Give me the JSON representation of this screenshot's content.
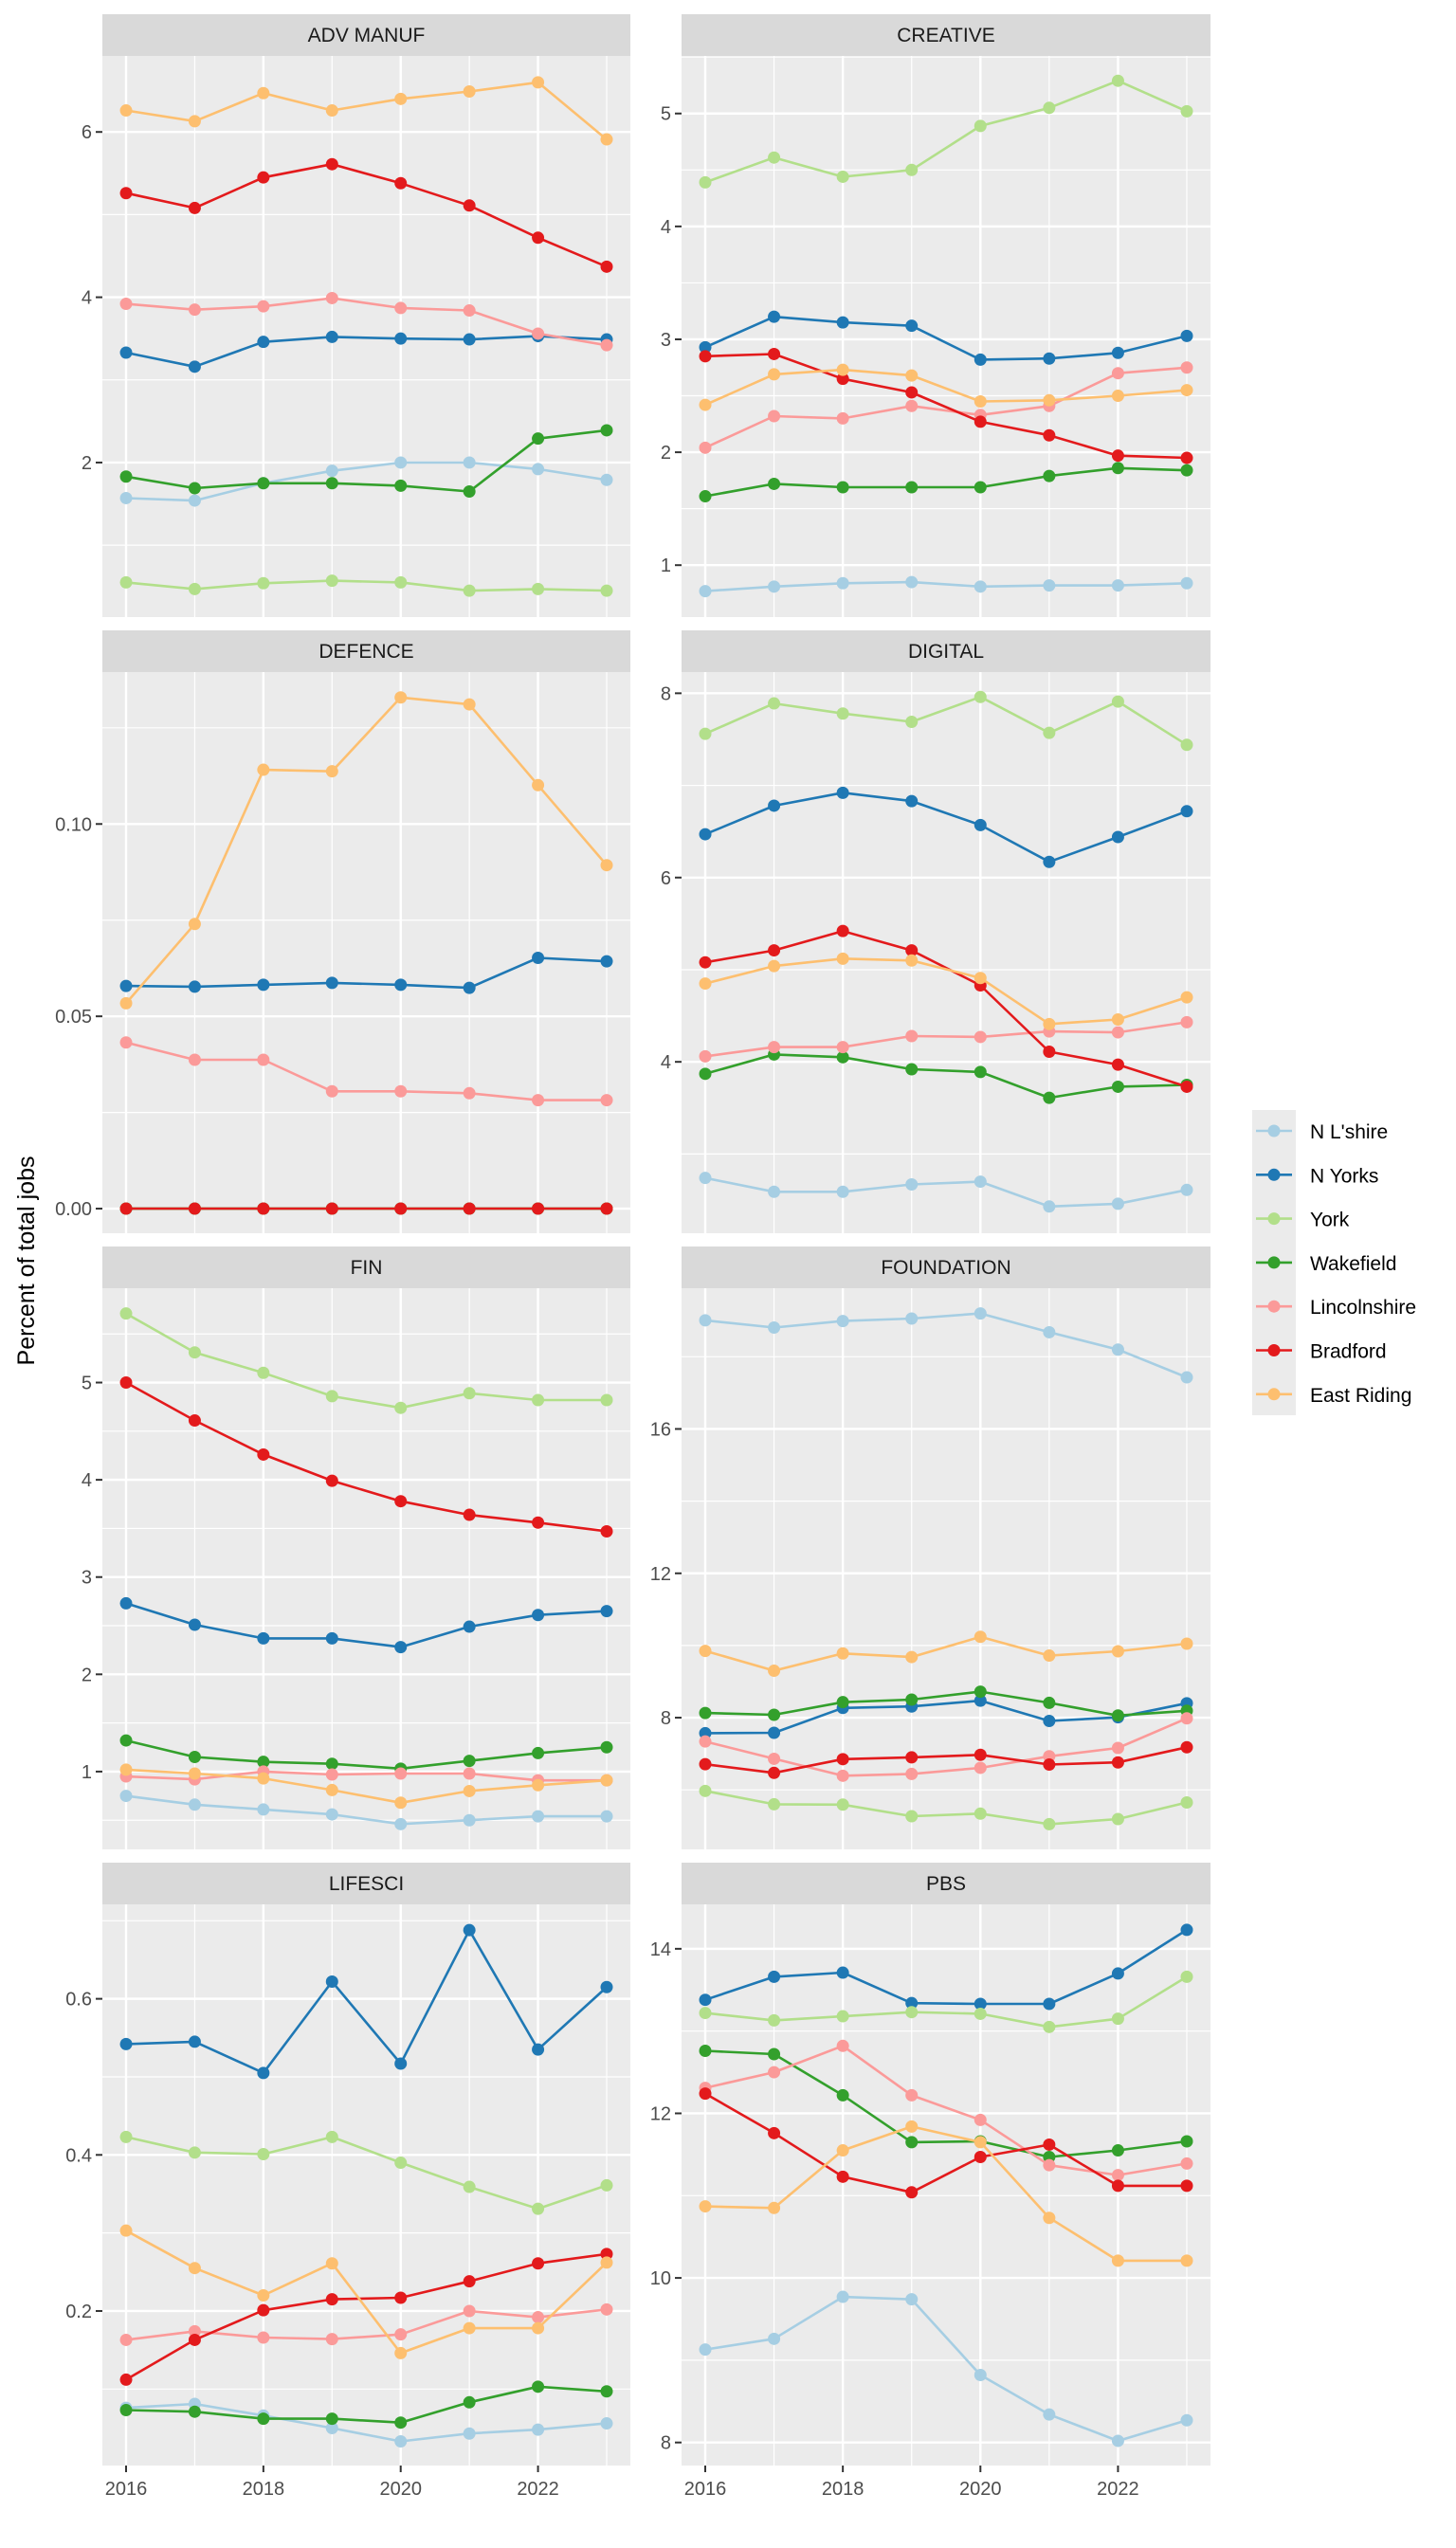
{
  "chart_data": {
    "type": "line",
    "ylabel": "Percent of total jobs",
    "xlabel": "",
    "x": [
      2016,
      2017,
      2018,
      2019,
      2020,
      2021,
      2022,
      2023
    ],
    "x_tick_labels": [
      "2016",
      "2018",
      "2020",
      "2022"
    ],
    "legend": {
      "placement": "right",
      "entries": [
        "N L'shire",
        "N Yorks",
        "York",
        "Wakefield",
        "Lincolnshire",
        "Bradford",
        "East Riding"
      ]
    },
    "series_colors": {
      "N L'shire": "#a6cee3",
      "N Yorks": "#1f78b4",
      "York": "#b2df8a",
      "Wakefield": "#33a02c",
      "Lincolnshire": "#fb9a99",
      "Bradford": "#e31a1c",
      "East Riding": "#fdbf6f"
    },
    "grid": true,
    "facets": [
      {
        "title": "ADV MANUF",
        "ylim": [
          0.13,
          6.92
        ],
        "y_ticks": [
          2,
          4,
          6
        ],
        "y_tick_labels": [
          "2",
          "4",
          "6"
        ],
        "series": [
          {
            "name": "N L'shire",
            "values": [
              1.57,
              1.54,
              1.75,
              1.9,
              2.0,
              2.0,
              1.92,
              1.79
            ]
          },
          {
            "name": "N Yorks",
            "values": [
              3.33,
              3.16,
              3.46,
              3.52,
              3.5,
              3.49,
              3.53,
              3.49
            ]
          },
          {
            "name": "York",
            "values": [
              0.55,
              0.47,
              0.54,
              0.57,
              0.55,
              0.45,
              0.47,
              0.45
            ]
          },
          {
            "name": "Wakefield",
            "values": [
              1.83,
              1.69,
              1.75,
              1.75,
              1.72,
              1.65,
              2.29,
              2.39
            ]
          },
          {
            "name": "Lincolnshire",
            "values": [
              3.92,
              3.85,
              3.89,
              3.99,
              3.87,
              3.84,
              3.56,
              3.42
            ]
          },
          {
            "name": "Bradford",
            "values": [
              5.26,
              5.08,
              5.45,
              5.61,
              5.38,
              5.11,
              4.72,
              4.37
            ]
          },
          {
            "name": "East Riding",
            "values": [
              6.26,
              6.13,
              6.47,
              6.26,
              6.4,
              6.49,
              6.6,
              5.91
            ]
          }
        ]
      },
      {
        "title": "CREATIVE",
        "ylim": [
          0.54,
          5.51
        ],
        "y_ticks": [
          1,
          2,
          3,
          4,
          5
        ],
        "y_tick_labels": [
          "1",
          "2",
          "3",
          "4",
          "5"
        ],
        "series": [
          {
            "name": "N L'shire",
            "values": [
              0.77,
              0.81,
              0.84,
              0.85,
              0.81,
              0.82,
              0.82,
              0.84
            ]
          },
          {
            "name": "N Yorks",
            "values": [
              2.93,
              3.2,
              3.15,
              3.12,
              2.82,
              2.83,
              2.88,
              3.03
            ]
          },
          {
            "name": "York",
            "values": [
              4.39,
              4.61,
              4.44,
              4.5,
              4.89,
              5.05,
              5.29,
              5.02
            ]
          },
          {
            "name": "Wakefield",
            "values": [
              1.61,
              1.72,
              1.69,
              1.69,
              1.69,
              1.79,
              1.86,
              1.84
            ]
          },
          {
            "name": "Lincolnshire",
            "values": [
              2.04,
              2.32,
              2.3,
              2.41,
              2.33,
              2.41,
              2.7,
              2.75
            ]
          },
          {
            "name": "Bradford",
            "values": [
              2.85,
              2.87,
              2.65,
              2.53,
              2.27,
              2.15,
              1.97,
              1.95
            ]
          },
          {
            "name": "East Riding",
            "values": [
              2.42,
              2.69,
              2.73,
              2.68,
              2.45,
              2.46,
              2.5,
              2.55
            ]
          }
        ]
      },
      {
        "title": "DEFENCE",
        "ylim": [
          -0.0064,
          0.1395
        ],
        "y_ticks": [
          0.0,
          0.05,
          0.1
        ],
        "y_tick_labels": [
          "0.00",
          "0.05",
          "0.10"
        ],
        "series": [
          {
            "name": "N L'shire",
            "values": [
              0,
              0,
              0,
              0,
              0,
              0,
              0,
              0
            ]
          },
          {
            "name": "N Yorks",
            "values": [
              0.0579,
              0.0577,
              0.0582,
              0.0587,
              0.0582,
              0.0574,
              0.0652,
              0.0643
            ]
          },
          {
            "name": "York",
            "values": [
              0,
              0,
              0,
              0,
              0,
              0,
              0,
              0
            ]
          },
          {
            "name": "Wakefield",
            "values": [
              0,
              0,
              0,
              0,
              0,
              0,
              0,
              0
            ]
          },
          {
            "name": "Lincolnshire",
            "values": [
              0.0432,
              0.0387,
              0.0387,
              0.0305,
              0.0305,
              0.03,
              0.0282,
              0.0282
            ]
          },
          {
            "name": "Bradford",
            "values": [
              0,
              0,
              0,
              0,
              0,
              0,
              0,
              0
            ]
          },
          {
            "name": "East Riding",
            "values": [
              0.0534,
              0.074,
              0.1141,
              0.1137,
              0.1329,
              0.1311,
              0.1101,
              0.0893
            ]
          }
        ]
      },
      {
        "title": "DIGITAL",
        "ylim": [
          2.14,
          8.23
        ],
        "y_ticks": [
          4,
          6,
          8
        ],
        "y_tick_labels": [
          "4",
          "6",
          "8"
        ],
        "series": [
          {
            "name": "N L'shire",
            "values": [
              2.74,
              2.59,
              2.59,
              2.67,
              2.7,
              2.43,
              2.46,
              2.61
            ]
          },
          {
            "name": "N Yorks",
            "values": [
              6.47,
              6.78,
              6.92,
              6.83,
              6.57,
              6.17,
              6.44,
              6.72
            ]
          },
          {
            "name": "York",
            "values": [
              7.56,
              7.89,
              7.78,
              7.69,
              7.96,
              7.57,
              7.91,
              7.44
            ]
          },
          {
            "name": "Wakefield",
            "values": [
              3.87,
              4.08,
              4.05,
              3.92,
              3.89,
              3.61,
              3.73,
              3.75
            ]
          },
          {
            "name": "Lincolnshire",
            "values": [
              4.06,
              4.16,
              4.16,
              4.28,
              4.27,
              4.33,
              4.32,
              4.43
            ]
          },
          {
            "name": "Bradford",
            "values": [
              5.08,
              5.21,
              5.42,
              5.21,
              4.83,
              4.11,
              3.97,
              3.73
            ]
          },
          {
            "name": "East Riding",
            "values": [
              4.85,
              5.04,
              5.12,
              5.1,
              4.91,
              4.41,
              4.46,
              4.7
            ]
          }
        ]
      },
      {
        "title": "FIN",
        "ylim": [
          0.2,
          5.97
        ],
        "y_ticks": [
          1,
          2,
          3,
          4,
          5
        ],
        "y_tick_labels": [
          "1",
          "2",
          "3",
          "4",
          "5"
        ],
        "series": [
          {
            "name": "N L'shire",
            "values": [
              0.75,
              0.66,
              0.61,
              0.56,
              0.46,
              0.5,
              0.54,
              0.54
            ]
          },
          {
            "name": "N Yorks",
            "values": [
              2.73,
              2.51,
              2.37,
              2.37,
              2.28,
              2.49,
              2.61,
              2.65
            ]
          },
          {
            "name": "York",
            "values": [
              5.71,
              5.31,
              5.1,
              4.86,
              4.74,
              4.89,
              4.82,
              4.82
            ]
          },
          {
            "name": "Wakefield",
            "values": [
              1.32,
              1.15,
              1.1,
              1.08,
              1.03,
              1.11,
              1.19,
              1.25
            ]
          },
          {
            "name": "Lincolnshire",
            "values": [
              0.95,
              0.92,
              1.0,
              0.97,
              0.98,
              0.98,
              0.91,
              0.91
            ]
          },
          {
            "name": "Bradford",
            "values": [
              5.0,
              4.61,
              4.26,
              3.99,
              3.78,
              3.64,
              3.56,
              3.47
            ]
          },
          {
            "name": "East Riding",
            "values": [
              1.02,
              0.98,
              0.93,
              0.81,
              0.68,
              0.8,
              0.86,
              0.91
            ]
          }
        ]
      },
      {
        "title": "FOUNDATION",
        "ylim": [
          4.35,
          19.9
        ],
        "y_ticks": [
          8,
          12,
          16
        ],
        "y_tick_labels": [
          "8",
          "12",
          "16"
        ],
        "series": [
          {
            "name": "N L'shire",
            "values": [
              19.01,
              18.81,
              18.99,
              19.06,
              19.2,
              18.68,
              18.2,
              17.43
            ]
          },
          {
            "name": "N Yorks",
            "values": [
              7.57,
              7.58,
              8.27,
              8.31,
              8.47,
              7.91,
              8.01,
              8.4
            ]
          },
          {
            "name": "York",
            "values": [
              5.97,
              5.6,
              5.59,
              5.27,
              5.34,
              5.05,
              5.19,
              5.65
            ]
          },
          {
            "name": "Wakefield",
            "values": [
              8.13,
              8.08,
              8.43,
              8.5,
              8.72,
              8.41,
              8.06,
              8.19
            ]
          },
          {
            "name": "Lincolnshire",
            "values": [
              7.34,
              6.86,
              6.39,
              6.44,
              6.61,
              6.93,
              7.16,
              7.98
            ]
          },
          {
            "name": "Bradford",
            "values": [
              6.71,
              6.47,
              6.85,
              6.9,
              6.97,
              6.7,
              6.76,
              7.18
            ]
          },
          {
            "name": "East Riding",
            "values": [
              9.85,
              9.3,
              9.78,
              9.68,
              10.24,
              9.72,
              9.84,
              10.05
            ]
          }
        ]
      },
      {
        "title": "LIFESCI",
        "ylim": [
          0.002,
          0.721
        ],
        "y_ticks": [
          0.2,
          0.4,
          0.6
        ],
        "y_tick_labels": [
          "0.2",
          "0.4",
          "0.6"
        ],
        "series": [
          {
            "name": "N L'shire",
            "values": [
              0.076,
              0.081,
              0.066,
              0.05,
              0.033,
              0.043,
              0.048,
              0.056
            ]
          },
          {
            "name": "N Yorks",
            "values": [
              0.542,
              0.545,
              0.505,
              0.622,
              0.517,
              0.688,
              0.535,
              0.615
            ]
          },
          {
            "name": "York",
            "values": [
              0.423,
              0.403,
              0.401,
              0.423,
              0.39,
              0.359,
              0.331,
              0.361
            ]
          },
          {
            "name": "Wakefield",
            "values": [
              0.073,
              0.071,
              0.062,
              0.062,
              0.057,
              0.083,
              0.103,
              0.097
            ]
          },
          {
            "name": "Lincolnshire",
            "values": [
              0.163,
              0.174,
              0.166,
              0.164,
              0.17,
              0.2,
              0.192,
              0.202
            ]
          },
          {
            "name": "Bradford",
            "values": [
              0.112,
              0.163,
              0.201,
              0.215,
              0.217,
              0.238,
              0.261,
              0.273
            ]
          },
          {
            "name": "East Riding",
            "values": [
              0.303,
              0.255,
              0.22,
              0.261,
              0.146,
              0.178,
              0.178,
              0.262
            ]
          }
        ]
      },
      {
        "title": "PBS",
        "ylim": [
          7.72,
          14.54
        ],
        "y_ticks": [
          8,
          10,
          12,
          14
        ],
        "y_tick_labels": [
          "8",
          "10",
          "12",
          "14"
        ],
        "series": [
          {
            "name": "N L'shire",
            "values": [
              9.13,
              9.26,
              9.77,
              9.74,
              8.82,
              8.34,
              8.02,
              8.27
            ]
          },
          {
            "name": "N Yorks",
            "values": [
              13.38,
              13.66,
              13.71,
              13.34,
              13.33,
              13.33,
              13.7,
              14.23
            ]
          },
          {
            "name": "York",
            "values": [
              13.22,
              13.13,
              13.18,
              13.23,
              13.21,
              13.05,
              13.15,
              13.66
            ]
          },
          {
            "name": "Wakefield",
            "values": [
              12.76,
              12.72,
              12.22,
              11.65,
              11.66,
              11.47,
              11.55,
              11.66
            ]
          },
          {
            "name": "Lincolnshire",
            "values": [
              12.31,
              12.5,
              12.82,
              12.22,
              11.92,
              11.37,
              11.25,
              11.39
            ]
          },
          {
            "name": "Bradford",
            "values": [
              12.24,
              11.76,
              11.23,
              11.04,
              11.47,
              11.62,
              11.12,
              11.12
            ]
          },
          {
            "name": "East Riding",
            "values": [
              10.87,
              10.85,
              11.55,
              11.84,
              11.65,
              10.73,
              10.21,
              10.21
            ]
          }
        ]
      }
    ]
  }
}
